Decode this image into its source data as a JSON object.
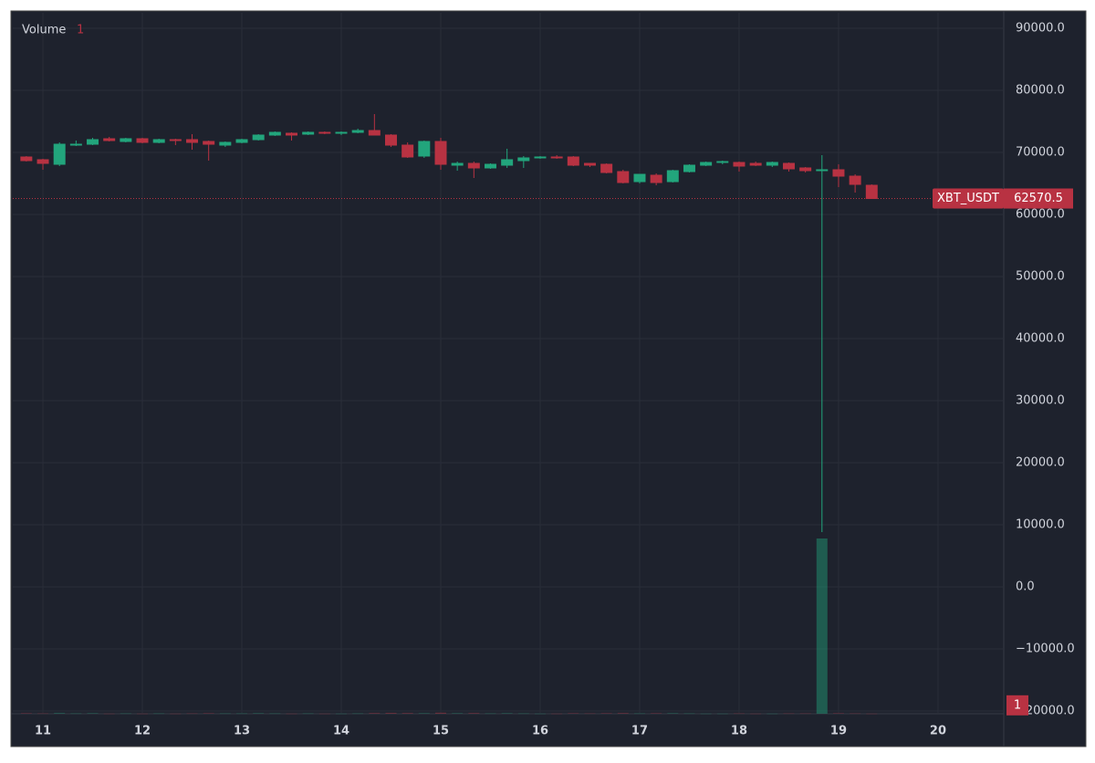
{
  "chart_data": {
    "type": "candlestick",
    "symbol": "XBT_USDT",
    "x": [
      10.8333,
      11,
      11.1667,
      11.3333,
      11.5,
      11.6667,
      11.8333,
      12,
      12.1667,
      12.3333,
      12.5,
      12.6667,
      12.8333,
      13,
      13.1667,
      13.3333,
      13.5,
      13.6667,
      13.8333,
      14,
      14.1667,
      14.3333,
      14.5,
      14.6667,
      14.8333,
      15,
      15.1667,
      15.3333,
      15.5,
      15.6667,
      15.8333,
      16,
      16.1667,
      16.3333,
      16.5,
      16.6667,
      16.8333,
      17,
      17.1667,
      17.3333,
      17.5,
      17.6667,
      17.8333,
      18,
      18.1667,
      18.3333,
      18.5,
      18.6667,
      18.8333,
      19,
      19.1667,
      19.3333
    ],
    "open": [
      69265,
      68824,
      68088,
      71176,
      71323,
      72206,
      71765,
      72206,
      71618,
      72059,
      72059,
      71765,
      71176,
      71618,
      72059,
      72794,
      73088,
      72941,
      73235,
      73088,
      73235,
      73529,
      72794,
      71176,
      69412,
      71765,
      67941,
      68235,
      67500,
      67941,
      68676,
      69118,
      69265,
      69265,
      68235,
      68088,
      66912,
      65294,
      66324,
      65294,
      66912,
      67941,
      68382,
      68382,
      68235,
      67941,
      68235,
      67500,
      67059,
      67206,
      66176,
      64706
    ],
    "high": [
      69412,
      68971,
      71618,
      71912,
      72353,
      72500,
      72353,
      72353,
      72206,
      72206,
      72941,
      71912,
      71765,
      72206,
      72941,
      73382,
      73235,
      73382,
      73382,
      73382,
      73824,
      76176,
      72941,
      71618,
      71912,
      72353,
      68529,
      68529,
      68235,
      70588,
      69412,
      69412,
      69559,
      69412,
      68235,
      68235,
      67206,
      66471,
      66618,
      67206,
      68088,
      68529,
      68676,
      68529,
      68529,
      68529,
      68382,
      67647,
      69559,
      68088,
      66471,
      64853
    ],
    "low": [
      68529,
      67206,
      67794,
      71029,
      71176,
      71765,
      71618,
      71471,
      71471,
      71176,
      70441,
      68676,
      70882,
      71471,
      71912,
      72647,
      71912,
      72794,
      72941,
      72794,
      73088,
      72794,
      70882,
      69118,
      69118,
      67206,
      67059,
      65882,
      67353,
      67500,
      67500,
      68971,
      68971,
      67794,
      67647,
      66618,
      65000,
      65000,
      64706,
      65147,
      66765,
      67794,
      68088,
      66912,
      67794,
      67647,
      66912,
      66765,
      8824,
      64412,
      63529,
      62500
    ],
    "close": [
      68676,
      68235,
      71323,
      71323,
      72059,
      71912,
      72206,
      71618,
      72059,
      71912,
      71618,
      71323,
      71618,
      72059,
      72794,
      73235,
      72794,
      73235,
      73088,
      73235,
      73529,
      72794,
      71176,
      69265,
      71765,
      68088,
      68235,
      67500,
      68088,
      68824,
      69118,
      69265,
      69118,
      67941,
      67941,
      66765,
      65147,
      66471,
      65147,
      67059,
      67941,
      68382,
      68529,
      67794,
      67941,
      68382,
      67353,
      67059,
      67206,
      66176,
      64853,
      62570.5
    ],
    "up_color": "#22a57c",
    "down_color": "#b83242",
    "volume": {
      "name": "Volume",
      "axis": "y2",
      "values": [
        3,
        2,
        4,
        2,
        3,
        1,
        2,
        1,
        2,
        1,
        2,
        3,
        2,
        2,
        3,
        2,
        1,
        2,
        1,
        1,
        2,
        4,
        5,
        4,
        3,
        6,
        3,
        4,
        2,
        3,
        2,
        1,
        1,
        3,
        2,
        3,
        4,
        2,
        3,
        3,
        2,
        1,
        1,
        2,
        1,
        1,
        2,
        2,
        1000,
        3,
        2,
        1
      ]
    },
    "xlim": [
      10.697,
      20.661
    ],
    "xticks": [
      11,
      12,
      13,
      14,
      15,
      16,
      17,
      18,
      19,
      20
    ],
    "ylim": [
      -20440,
      92500
    ],
    "yticks": [
      {
        "value": 90000,
        "label": "90000.0"
      },
      {
        "value": 80000,
        "label": "80000.0"
      },
      {
        "value": 70000,
        "label": "70000.0"
      },
      {
        "value": 60000,
        "label": "60000.0"
      },
      {
        "value": 50000,
        "label": "50000.0"
      },
      {
        "value": 40000,
        "label": "40000.0"
      },
      {
        "value": 30000,
        "label": "30000.0"
      },
      {
        "value": 20000,
        "label": "20000.0"
      },
      {
        "value": 10000,
        "label": "10000.0"
      },
      {
        "value": 0,
        "label": "0.0"
      },
      {
        "value": -10000,
        "label": "−10000.0"
      },
      {
        "value": -20000,
        "label": "−20000.0"
      }
    ],
    "y2lim": [
      0,
      4000
    ],
    "grid": true
  }
}
